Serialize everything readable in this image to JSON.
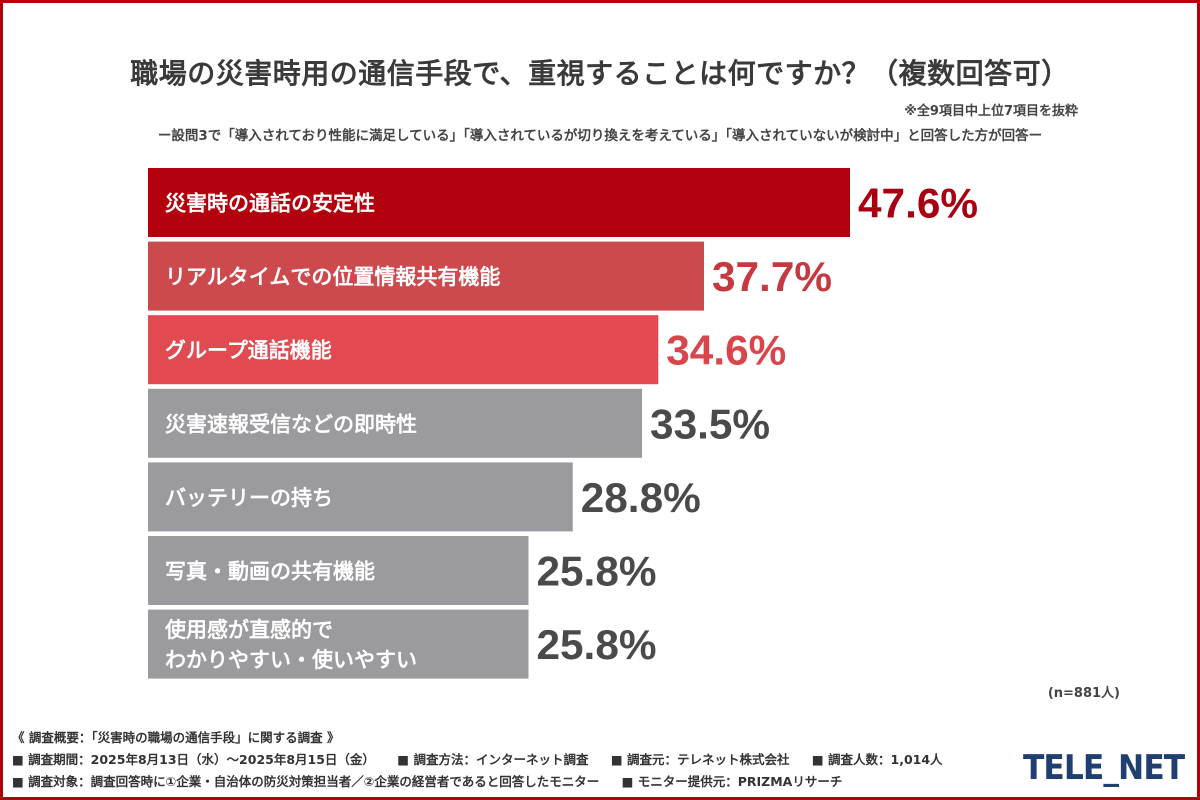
{
  "header": {
    "title": "職場の災害時用の通信手段で、重視することは何ですか？（複数回答可）",
    "note": "※全9項目中上位7項目を抜粋",
    "subtitle": "ー設問3で「導入されており性能に満足している」「導入されているが切り換えを考えている」「導入されていないが検討中」と回答した方が回答ー"
  },
  "chart_data": {
    "type": "bar",
    "orientation": "horizontal",
    "title": "職場の災害時用の通信手段で、重視することは何ですか？（複数回答可）",
    "unit": "%",
    "categories": [
      [
        "災害時の通話の安定性"
      ],
      [
        "リアルタイムでの位置情報共有機能"
      ],
      [
        "グループ通話機能"
      ],
      [
        "災害速報受信などの即時性"
      ],
      [
        "バッテリーの持ち"
      ],
      [
        "写真・動画の共有機能"
      ],
      [
        "使用感が直感的で",
        "わかりやすい・使いやすい"
      ]
    ],
    "values": [
      47.6,
      37.7,
      34.6,
      33.5,
      28.8,
      25.8,
      25.8
    ],
    "value_labels": [
      "47.6%",
      "37.7%",
      "34.6%",
      "33.5%",
      "28.8%",
      "25.8%",
      "25.8%"
    ],
    "bar_colors": [
      "#b3000d",
      "#cc4a4e",
      "#e04a50",
      "#9b9b9f",
      "#9b9b9f",
      "#9b9b9f",
      "#9b9b9f"
    ],
    "label_colors": [
      "#a80010",
      "#c43a40",
      "#d8454b",
      "#4a4a4a",
      "#4a4a4a",
      "#4a4a4a",
      "#4a4a4a"
    ],
    "xlim": [
      0,
      50
    ],
    "grid": false,
    "legend": "none",
    "sample_size": "(n=881人)"
  },
  "footer": {
    "overview": "《 調査概要：「災害時の職場の通信手段」に関する調査 》",
    "period": "■ 調査期間：2025年8月13日（水）〜2025年8月15日（金）",
    "method": "■ 調査方法：インターネット調査",
    "organizer": "■ 調査元：テレネット株式会社",
    "count": "■ 調査人数：1,014人",
    "target": "■ 調査対象：調査回答時に①企業・自治体の防災対策担当者／②企業の経営者であると回答したモニター",
    "provider": "■ モニター提供元：PRIZMAリサーチ"
  },
  "logo": {
    "text": "TELE_NET",
    "color": "#1f3f70"
  }
}
